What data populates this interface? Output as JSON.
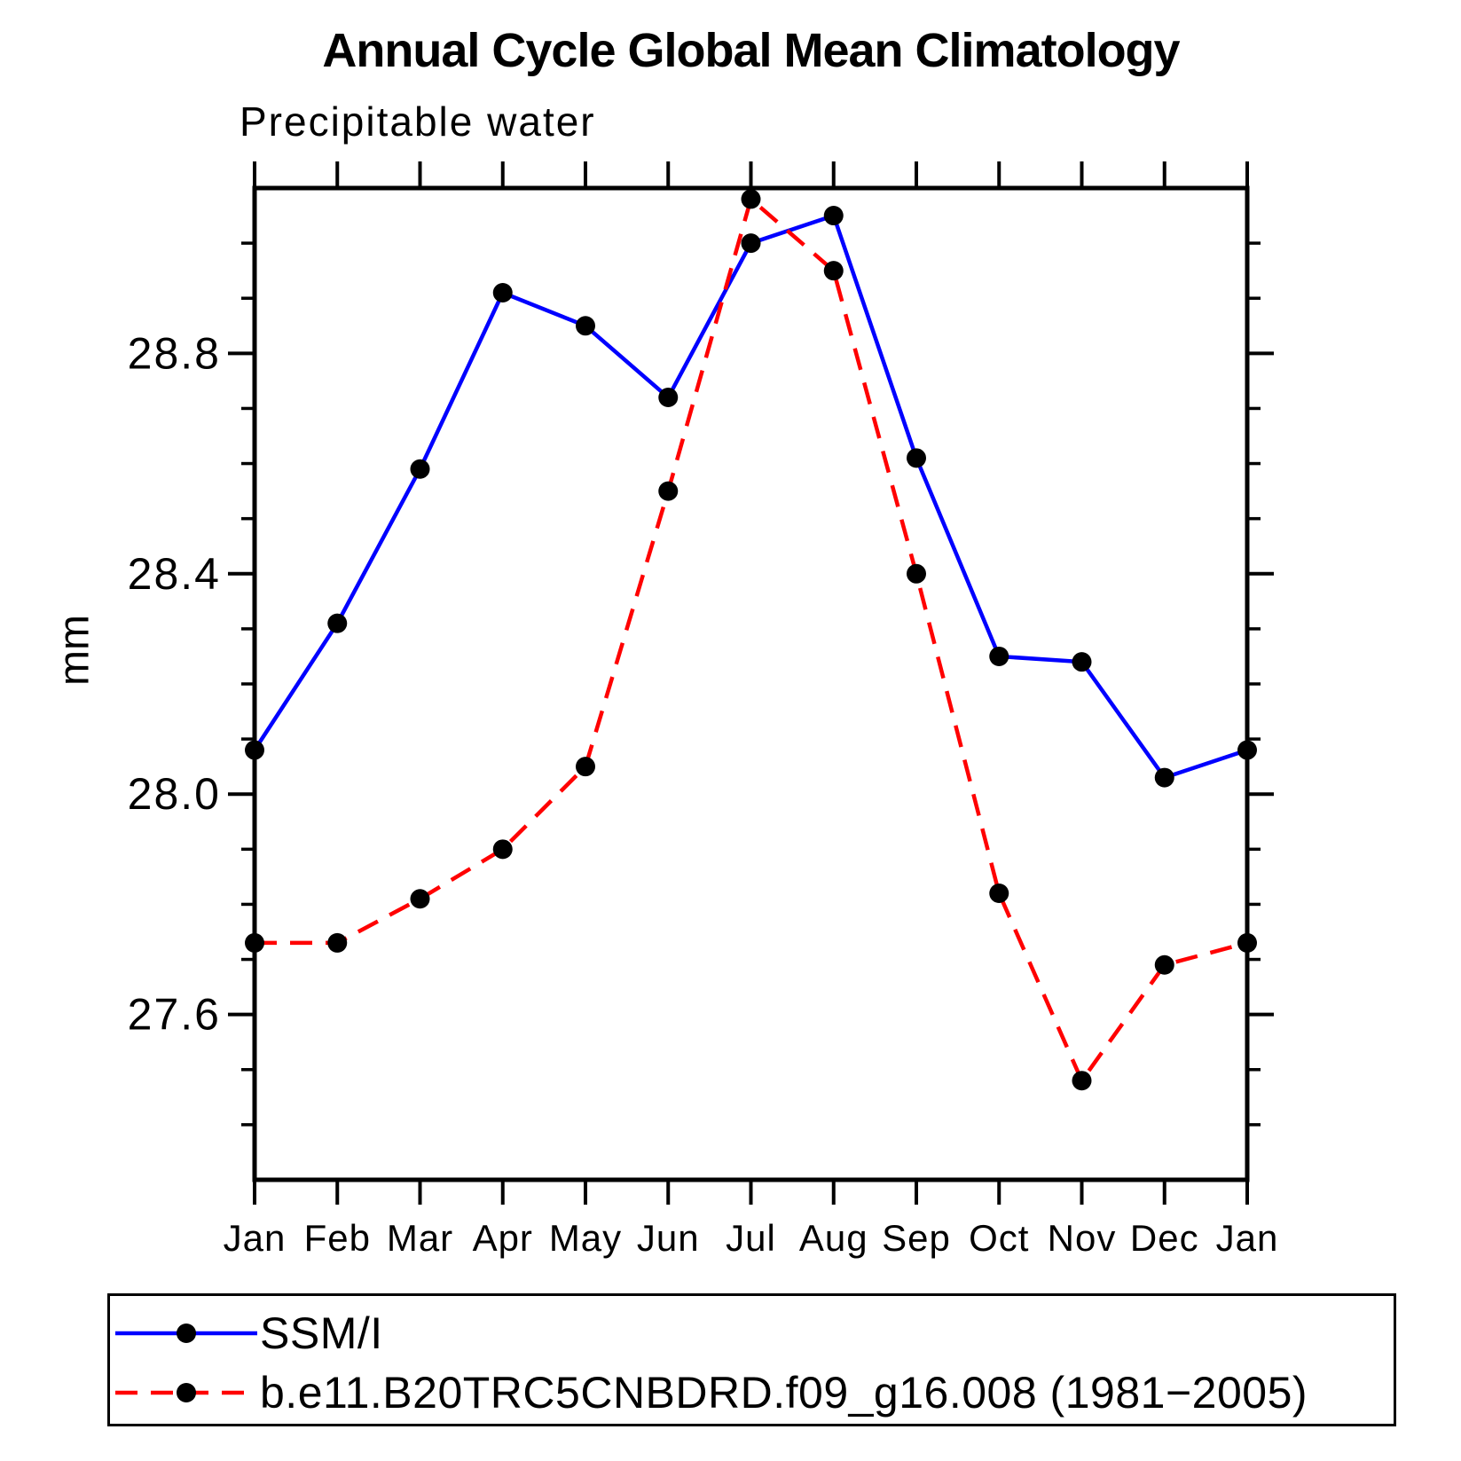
{
  "chart_data": {
    "type": "line",
    "title": "Annual Cycle Global Mean Climatology",
    "subtitle": "Precipitable water",
    "ylabel": "mm",
    "unit": "mm",
    "categories": [
      "Jan",
      "Feb",
      "Mar",
      "Apr",
      "May",
      "Jun",
      "Jul",
      "Aug",
      "Sep",
      "Oct",
      "Nov",
      "Dec",
      "Jan"
    ],
    "series": [
      {
        "name": "SSM/I",
        "color": "#0000ff",
        "line_style": "solid",
        "marker": "filled-circle",
        "marker_color": "#000000",
        "values": [
          28.08,
          28.31,
          28.59,
          28.91,
          28.85,
          28.72,
          29.0,
          29.05,
          28.61,
          28.25,
          28.24,
          28.03,
          28.08
        ]
      },
      {
        "name": "b.e11.B20TRC5CNBDRD.f09_g16.008 (1981−2005)",
        "color": "#ff0000",
        "line_style": "dashed",
        "marker": "filled-circle",
        "marker_color": "#000000",
        "values": [
          27.73,
          27.73,
          27.81,
          27.9,
          28.05,
          28.55,
          29.08,
          28.95,
          28.4,
          27.82,
          27.48,
          27.69,
          27.73
        ]
      }
    ],
    "ylim": [
      27.3,
      29.1
    ],
    "yticks_major": [
      27.6,
      28.0,
      28.4,
      28.8
    ],
    "ytick_minor_step": 0.1,
    "grid": false,
    "legend_position": "bottom-left-box",
    "frame_color": "#000000"
  }
}
